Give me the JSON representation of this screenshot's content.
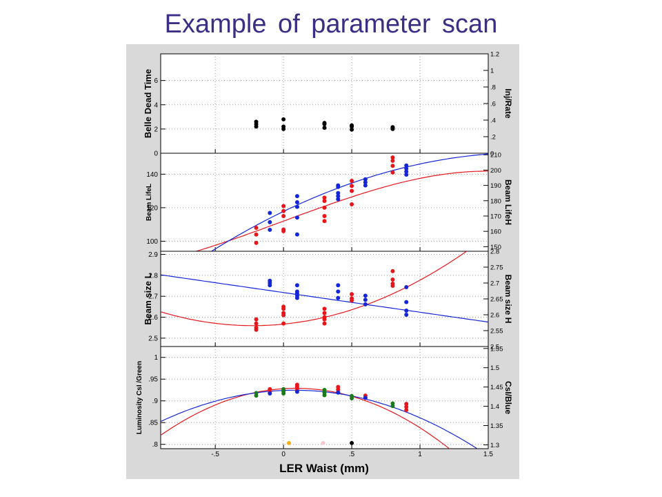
{
  "title": "Example of parameter scan",
  "colors": {
    "title": "#3a2f84",
    "frame_bg": "#d9d9d9",
    "red": "#e8151b",
    "blue": "#1326d8",
    "green": "#1b7a1b",
    "black": "#000000",
    "orange": "#f5b015",
    "pink": "#f6c6cc"
  },
  "x_axis": {
    "label": "LER Waist (mm)",
    "range": [
      -0.9,
      1.5
    ],
    "ticks": [
      -0.5,
      0,
      0.5,
      1,
      1.5
    ],
    "tick_labels": [
      "-.5",
      "0",
      ".5",
      "1",
      "1.5"
    ]
  },
  "chart_data": [
    {
      "type": "scatter",
      "panel": "dead-time",
      "ylabel_left": "Belle Dead Time",
      "ylabel_right": "Inj/Rate",
      "ylim_left": [
        0,
        8.2
      ],
      "ylim_right": [
        0,
        1.2
      ],
      "ticks_left": [
        0,
        2,
        4,
        6
      ],
      "ticks_left_labels": [
        "0",
        "2",
        "4",
        "6"
      ],
      "ticks_right": [
        0,
        0.2,
        0.4,
        0.6,
        0.8,
        1,
        1.2
      ],
      "ticks_right_labels": [
        "0",
        ".2",
        ".4",
        ".6",
        ".8",
        "1",
        "1.2"
      ],
      "grid": true,
      "series": [
        {
          "color": "black",
          "axis": "left",
          "points": [
            [
              -0.2,
              2.6
            ],
            [
              -0.2,
              2.4
            ],
            [
              -0.2,
              2.2
            ],
            [
              0,
              2.8
            ],
            [
              0,
              2.2
            ],
            [
              0,
              2.0
            ],
            [
              0.3,
              2.5
            ],
            [
              0.3,
              2.4
            ],
            [
              0.3,
              2.1
            ],
            [
              0.5,
              2.3
            ],
            [
              0.5,
              2.2
            ],
            [
              0.5,
              1.95
            ],
            [
              0.8,
              2.15
            ],
            [
              0.8,
              2.0
            ],
            [
              0.8,
              2.1
            ]
          ]
        }
      ]
    },
    {
      "type": "scatter",
      "panel": "lifetime",
      "ylabel_left": "Beam LifeL",
      "ylabel_right": "Beam LifeH",
      "ylim_left": [
        94,
        152.5
      ],
      "ylim_right": [
        147,
        211
      ],
      "ticks_left": [
        100,
        120,
        140
      ],
      "ticks_left_labels": [
        "100",
        "120",
        "140"
      ],
      "ticks_right": [
        150,
        160,
        170,
        180,
        190,
        200,
        210
      ],
      "ticks_right_labels": [
        "150",
        "160",
        "170",
        "180",
        "190",
        "200",
        "210"
      ],
      "grid": true,
      "series": [
        {
          "color": "red",
          "axis": "left",
          "points": [
            [
              -0.2,
              108
            ],
            [
              -0.2,
              104
            ],
            [
              -0.2,
              99
            ],
            [
              0,
              121
            ],
            [
              0,
              118
            ],
            [
              0,
              115
            ],
            [
              0,
              107
            ],
            [
              0,
              106
            ],
            [
              0.3,
              126
            ],
            [
              0.3,
              124
            ],
            [
              0.3,
              120
            ],
            [
              0.3,
              115
            ],
            [
              0.3,
              112
            ],
            [
              0.5,
              136
            ],
            [
              0.5,
              133
            ],
            [
              0.5,
              130
            ],
            [
              0.5,
              122
            ],
            [
              0.8,
              150
            ],
            [
              0.8,
              148
            ],
            [
              0.8,
              145
            ],
            [
              0.8,
              141
            ]
          ]
        },
        {
          "color": "blue",
          "axis": "right",
          "points": [
            [
              -0.1,
              172
            ],
            [
              -0.1,
              166
            ],
            [
              -0.1,
              161
            ],
            [
              0.1,
              183
            ],
            [
              0.1,
              179
            ],
            [
              0.1,
              176
            ],
            [
              0.1,
              169
            ],
            [
              0.1,
              158
            ],
            [
              0.4,
              190
            ],
            [
              0.4,
              189
            ],
            [
              0.4,
              185
            ],
            [
              0.4,
              183
            ],
            [
              0.4,
              181
            ],
            [
              0.6,
              194
            ],
            [
              0.6,
              192
            ],
            [
              0.6,
              190
            ],
            [
              0.9,
              203
            ],
            [
              0.9,
              201
            ],
            [
              0.9,
              199
            ],
            [
              0.9,
              197
            ]
          ]
        }
      ],
      "fits": [
        {
          "color": "red",
          "axis": "left",
          "kind": "cubic",
          "coef": [
            112,
            30,
            0,
            -4.5
          ]
        },
        {
          "color": "blue",
          "axis": "right",
          "kind": "quadratic",
          "coef": [
            173,
            43,
            -12
          ]
        }
      ]
    },
    {
      "type": "scatter",
      "panel": "beam-size",
      "ylabel_left": "Beam size L",
      "ylabel_right": "Beam size H",
      "ylim_left": [
        2.46,
        2.915
      ],
      "ylim_right": [
        2.5,
        2.8
      ],
      "ticks_left": [
        2.5,
        2.6,
        2.7,
        2.8,
        2.9
      ],
      "ticks_left_labels": [
        "2.5",
        "2.6",
        "2.7",
        "2.8",
        "2.9"
      ],
      "ticks_right": [
        2.5,
        2.55,
        2.6,
        2.65,
        2.7,
        2.75,
        2.8
      ],
      "ticks_right_labels": [
        "2.5",
        "2.55",
        "2.6",
        "2.65",
        "2.7",
        "2.75",
        "2.8"
      ],
      "grid": true,
      "series": [
        {
          "color": "red",
          "axis": "left",
          "points": [
            [
              -0.2,
              2.59
            ],
            [
              -0.2,
              2.57
            ],
            [
              -0.2,
              2.55
            ],
            [
              -0.2,
              2.54
            ],
            [
              0,
              2.65
            ],
            [
              0,
              2.64
            ],
            [
              0,
              2.62
            ],
            [
              0,
              2.61
            ],
            [
              0,
              2.57
            ],
            [
              0.3,
              2.64
            ],
            [
              0.3,
              2.62
            ],
            [
              0.3,
              2.6
            ],
            [
              0.3,
              2.59
            ],
            [
              0.3,
              2.57
            ],
            [
              0.5,
              2.71
            ],
            [
              0.5,
              2.69
            ],
            [
              0.5,
              2.68
            ],
            [
              0.8,
              2.82
            ],
            [
              0.8,
              2.78
            ],
            [
              0.8,
              2.76
            ],
            [
              0.8,
              2.75
            ]
          ]
        },
        {
          "color": "blue",
          "axis": "right",
          "points": [
            [
              -0.1,
              2.707
            ],
            [
              -0.1,
              2.7
            ],
            [
              -0.1,
              2.693
            ],
            [
              0.1,
              2.693
            ],
            [
              0.1,
              2.673
            ],
            [
              0.1,
              2.667
            ],
            [
              0.1,
              2.66
            ],
            [
              0.1,
              2.653
            ],
            [
              0.4,
              2.693
            ],
            [
              0.4,
              2.673
            ],
            [
              0.4,
              2.653
            ],
            [
              0.6,
              2.66
            ],
            [
              0.6,
              2.647
            ],
            [
              0.6,
              2.633
            ],
            [
              0.9,
              2.687
            ],
            [
              0.9,
              2.64
            ],
            [
              0.9,
              2.613
            ],
            [
              0.9,
              2.6
            ]
          ]
        }
      ],
      "fits": [
        {
          "color": "red",
          "axis": "left",
          "kind": "quadratic",
          "coef": [
            2.567,
            0.065,
            0.145
          ]
        },
        {
          "color": "blue",
          "axis": "right",
          "kind": "linear",
          "coef": [
            2.67,
            -0.062
          ]
        }
      ]
    },
    {
      "type": "scatter",
      "panel": "luminosity",
      "ylabel_left": "Luminosity CsI /Green",
      "ylabel_right": "CsI/Blue",
      "ylim_left": [
        0.79,
        1.025
      ],
      "ylim_right": [
        1.29,
        1.555
      ],
      "ticks_left": [
        0.8,
        0.85,
        0.9,
        0.95,
        1
      ],
      "ticks_left_labels": [
        ".8",
        ".85",
        ".9",
        ".95",
        "1"
      ],
      "ticks_right": [
        1.3,
        1.35,
        1.4,
        1.45,
        1.5,
        1.55
      ],
      "ticks_right_labels": [
        "1.3",
        "1.35",
        "1.4",
        "1.45",
        "1.5",
        "1.55"
      ],
      "grid": true,
      "series": [
        {
          "color": "green",
          "axis": "left",
          "points": [
            [
              -0.2,
              0.918
            ],
            [
              -0.2,
              0.912
            ],
            [
              0,
              0.927
            ],
            [
              0,
              0.922
            ],
            [
              0,
              0.917
            ],
            [
              0.3,
              0.925
            ],
            [
              0.3,
              0.919
            ],
            [
              0.3,
              0.913
            ],
            [
              0.5,
              0.911
            ],
            [
              0.5,
              0.906
            ],
            [
              0.8,
              0.894
            ],
            [
              0.8,
              0.888
            ]
          ]
        },
        {
          "color": "red",
          "axis": "left",
          "points": [
            [
              -0.1,
              0.927
            ],
            [
              -0.1,
              0.921
            ],
            [
              0.1,
              0.937
            ],
            [
              0.1,
              0.933
            ],
            [
              0.1,
              0.929
            ],
            [
              0.1,
              0.924
            ],
            [
              0.4,
              0.932
            ],
            [
              0.4,
              0.926
            ],
            [
              0.4,
              0.92
            ],
            [
              0.6,
              0.912
            ],
            [
              0.6,
              0.907
            ],
            [
              0.9,
              0.893
            ],
            [
              0.9,
              0.886
            ],
            [
              0.9,
              0.879
            ]
          ]
        },
        {
          "color": "blue",
          "axis": "left",
          "points": [
            [
              -0.1,
              0.917
            ],
            [
              0.1,
              0.921
            ],
            [
              0.4,
              0.919
            ],
            [
              0.6,
              0.907
            ]
          ]
        },
        {
          "color": "orange",
          "axis": "left",
          "points": [
            [
              0.04,
              0.803
            ]
          ]
        },
        {
          "color": "pink",
          "axis": "left",
          "points": [
            [
              0.29,
              0.803
            ]
          ]
        },
        {
          "color": "black",
          "axis": "left",
          "points": [
            [
              0.5,
              0.803
            ]
          ]
        }
      ],
      "fits": [
        {
          "color": "red",
          "axis": "left",
          "kind": "quadratic",
          "coef": [
            0.928,
            0.02,
            -0.11
          ]
        },
        {
          "color": "blue",
          "axis": "left",
          "kind": "quadratic",
          "coef": [
            0.924,
            0.012,
            -0.075
          ]
        }
      ]
    }
  ]
}
